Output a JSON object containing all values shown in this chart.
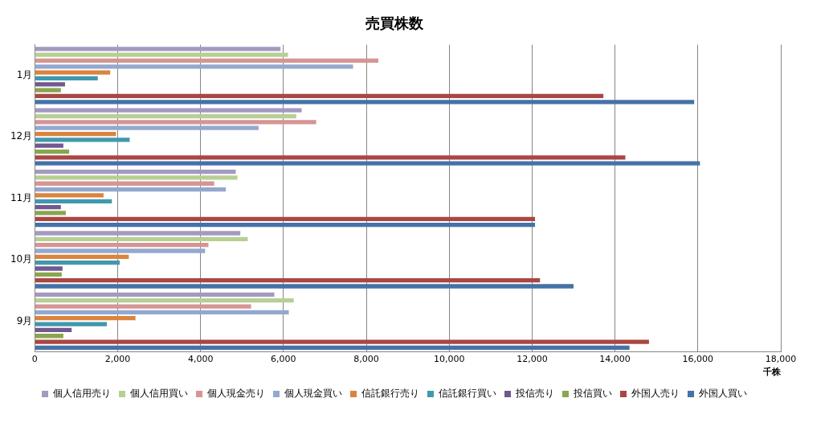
{
  "chart_data": {
    "type": "bar",
    "orientation": "horizontal",
    "title": "売買株数",
    "xlabel": "千株",
    "categories": [
      "1月",
      "12月",
      "11月",
      "10月",
      "9月"
    ],
    "series": [
      {
        "name": "個人信用売り",
        "color": "#a499c0",
        "values": [
          5930,
          6440,
          4850,
          4960,
          5780
        ]
      },
      {
        "name": "個人信用買い",
        "color": "#b8cf94",
        "values": [
          6110,
          6310,
          4890,
          5140,
          6250
        ]
      },
      {
        "name": "個人現金売り",
        "color": "#d59594",
        "values": [
          8290,
          6790,
          4330,
          4190,
          5220
        ]
      },
      {
        "name": "個人現金買い",
        "color": "#94a8cf",
        "values": [
          7680,
          5400,
          4610,
          4110,
          6130
        ]
      },
      {
        "name": "信託銀行売り",
        "color": "#db843d",
        "values": [
          1820,
          1960,
          1660,
          2270,
          2430
        ]
      },
      {
        "name": "信託銀行買い",
        "color": "#4198af",
        "values": [
          1520,
          2290,
          1860,
          2050,
          1740
        ]
      },
      {
        "name": "投信売り",
        "color": "#71588f",
        "values": [
          730,
          690,
          630,
          670,
          890
        ]
      },
      {
        "name": "投信買い",
        "color": "#89a54e",
        "values": [
          630,
          830,
          750,
          650,
          690
        ]
      },
      {
        "name": "外国人売り",
        "color": "#aa4643",
        "values": [
          13720,
          14250,
          12070,
          12190,
          14820
        ]
      },
      {
        "name": "外国人買い",
        "color": "#4572a7",
        "values": [
          15910,
          16050,
          12070,
          13000,
          14350
        ]
      }
    ],
    "xlim": [
      0,
      18000
    ],
    "xticks": [
      {
        "value": 0,
        "label": "0"
      },
      {
        "value": 2000,
        "label": "2,000"
      },
      {
        "value": 4000,
        "label": "4,000"
      },
      {
        "value": 6000,
        "label": "6,000"
      },
      {
        "value": 8000,
        "label": "8,000"
      },
      {
        "value": 10000,
        "label": "10,000"
      },
      {
        "value": 12000,
        "label": "12,000"
      },
      {
        "value": 14000,
        "label": "14,000"
      },
      {
        "value": 16000,
        "label": "16,000"
      },
      {
        "value": 18000,
        "label": "18,000"
      }
    ],
    "grid": "x",
    "legend": "bottom"
  }
}
